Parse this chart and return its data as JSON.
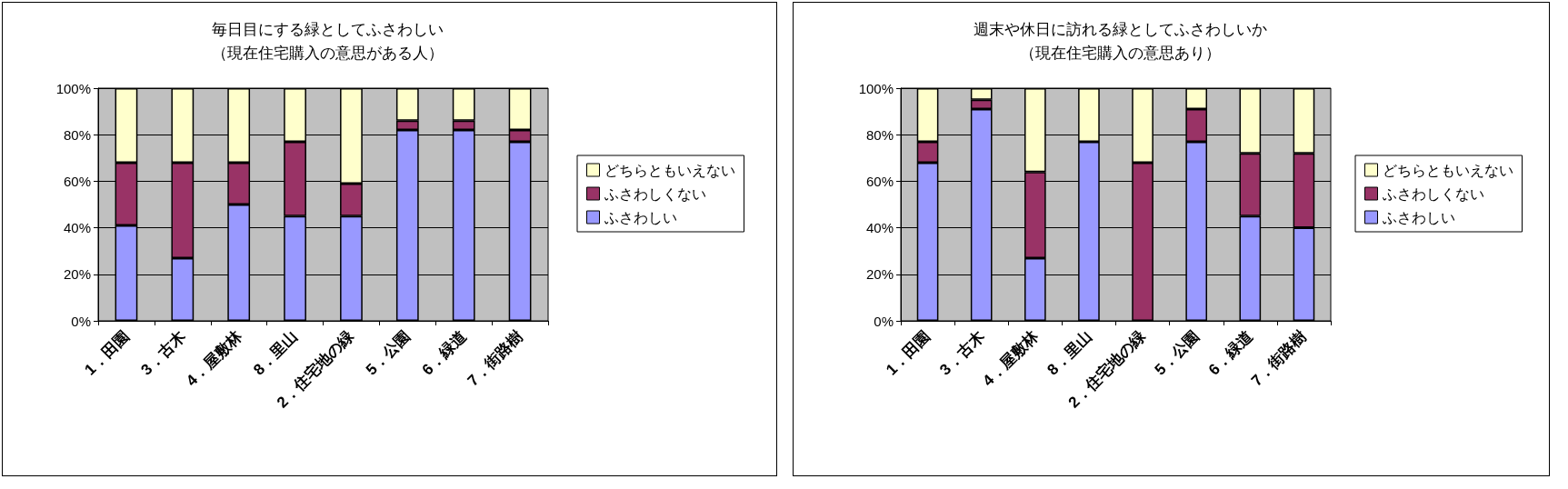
{
  "chart_data": [
    {
      "type": "bar",
      "title": "毎日目にする緑としてふさわしい",
      "subtitle": "（現在住宅購入の意思がある人）",
      "categories": [
        "1．田園",
        "3．古木",
        "4．屋敷林",
        "8．里山",
        "2．住宅地の緑",
        "5．公園",
        "6．緑道",
        "7．街路樹"
      ],
      "stacked": true,
      "legend": "right",
      "grid": "y",
      "ylim": [
        0,
        100
      ],
      "yticks": [
        {
          "value": 0,
          "label": "0%"
        },
        {
          "value": 20,
          "label": "20%"
        },
        {
          "value": 40,
          "label": "40%"
        },
        {
          "value": 60,
          "label": "60%"
        },
        {
          "value": 80,
          "label": "80%"
        },
        {
          "value": 100,
          "label": "100%"
        }
      ],
      "series": [
        {
          "name": "ふさわしい",
          "color": "#9999ff",
          "values": [
            41,
            27,
            50,
            45,
            45,
            82,
            82,
            77
          ]
        },
        {
          "name": "ふさわしくない",
          "color": "#993366",
          "values": [
            27,
            41,
            18,
            32,
            14,
            4,
            4,
            5
          ]
        },
        {
          "name": "どちらともいえない",
          "color": "#ffffcc",
          "values": [
            32,
            32,
            32,
            23,
            41,
            14,
            14,
            18
          ]
        }
      ]
    },
    {
      "type": "bar",
      "title": "週末や休日に訪れる緑としてふさわしいか",
      "subtitle": "（現在住宅購入の意思あり）",
      "categories": [
        "1．田園",
        "3．古木",
        "4．屋敷林",
        "8．里山",
        "2．住宅地の緑",
        "5．公園",
        "6．緑道",
        "7．街路樹"
      ],
      "stacked": true,
      "legend": "right",
      "grid": "y",
      "ylim": [
        0,
        100
      ],
      "yticks": [
        {
          "value": 0,
          "label": "0%"
        },
        {
          "value": 20,
          "label": "20%"
        },
        {
          "value": 40,
          "label": "40%"
        },
        {
          "value": 60,
          "label": "60%"
        },
        {
          "value": 80,
          "label": "80%"
        },
        {
          "value": 100,
          "label": "100%"
        }
      ],
      "series": [
        {
          "name": "ふさわしい",
          "color": "#9999ff",
          "values": [
            68,
            91,
            27,
            77,
            0,
            77,
            45,
            40
          ]
        },
        {
          "name": "ふさわしくない",
          "color": "#993366",
          "values": [
            9,
            4,
            37,
            0,
            68,
            14,
            27,
            32
          ]
        },
        {
          "name": "どちらともいえない",
          "color": "#ffffcc",
          "values": [
            23,
            5,
            36,
            23,
            32,
            9,
            28,
            28
          ]
        }
      ]
    }
  ]
}
